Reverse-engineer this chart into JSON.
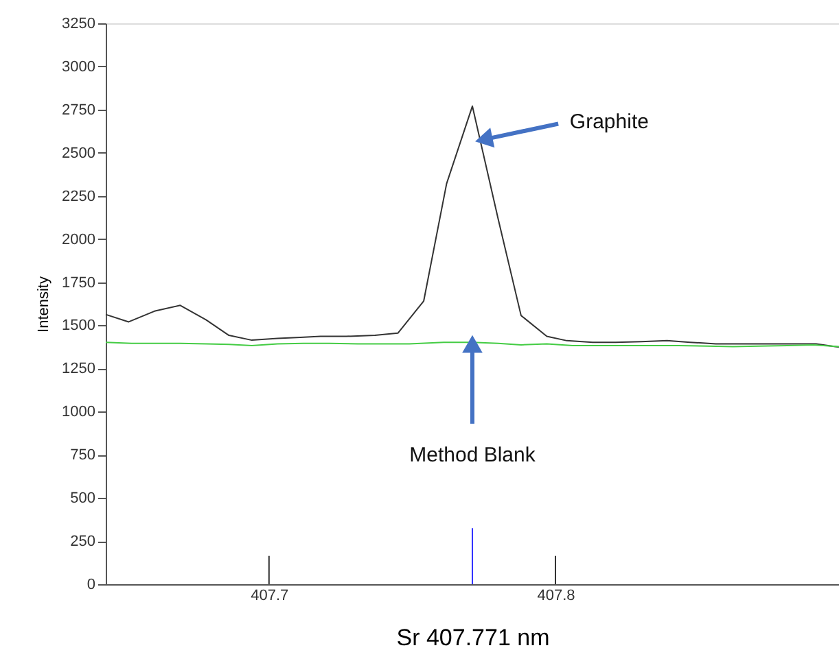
{
  "chart_data": {
    "type": "line",
    "xlabel": "Sr 407.771 nm",
    "ylabel": "Intensity",
    "xlim": [
      407.643,
      407.899
    ],
    "xticks": [
      407.7,
      407.8
    ],
    "ylim": [
      0,
      3250
    ],
    "yticks": [
      0,
      250,
      500,
      750,
      1000,
      1250,
      1500,
      1750,
      2000,
      2250,
      2500,
      2750,
      3000,
      3250
    ],
    "grid": false,
    "marker": "none",
    "line_style": "solid",
    "series": [
      {
        "color": "#333333",
        "x": [
          407.643,
          407.651,
          407.66,
          407.669,
          407.678,
          407.686,
          407.694,
          407.703,
          407.711,
          407.718,
          407.727,
          407.737,
          407.745,
          407.754,
          407.762,
          407.771,
          407.78,
          407.788,
          407.797,
          407.804,
          407.813,
          407.821,
          407.83,
          407.839,
          407.847,
          407.856,
          407.866,
          407.873,
          407.882,
          407.891,
          407.899
        ],
        "values": [
          1563,
          1520,
          1582,
          1616,
          1532,
          1442,
          1414,
          1424,
          1430,
          1436,
          1436,
          1442,
          1455,
          1640,
          2321,
          2770,
          2117,
          1557,
          1436,
          1411,
          1402,
          1402,
          1405,
          1411,
          1402,
          1393,
          1393,
          1393,
          1393,
          1393,
          1374
        ]
      },
      {
        "color": "#44cc44",
        "x": [
          407.643,
          407.652,
          407.66,
          407.669,
          407.678,
          407.686,
          407.694,
          407.703,
          407.712,
          407.721,
          407.731,
          407.74,
          407.749,
          407.761,
          407.771,
          407.78,
          407.788,
          407.797,
          407.806,
          407.815,
          407.825,
          407.834,
          407.843,
          407.853,
          407.862,
          407.871,
          407.881,
          407.89,
          407.899
        ],
        "values": [
          1402,
          1396,
          1396,
          1396,
          1393,
          1390,
          1383,
          1393,
          1396,
          1396,
          1393,
          1393,
          1393,
          1402,
          1402,
          1396,
          1387,
          1393,
          1383,
          1383,
          1383,
          1383,
          1383,
          1380,
          1377,
          1380,
          1383,
          1387,
          1377
        ]
      },
      {
        "type": "bar",
        "x": [
          407.7,
          407.771,
          407.8
        ],
        "values": [
          164,
          325,
          164
        ],
        "colors": [
          "#333333",
          "#3333ff",
          "#333333"
        ]
      }
    ],
    "annotations": [
      {
        "text": "Graphite",
        "x": 407.774,
        "y": 2580
      },
      {
        "text": "Method Blank",
        "x": 407.771,
        "y": 1400
      }
    ]
  }
}
